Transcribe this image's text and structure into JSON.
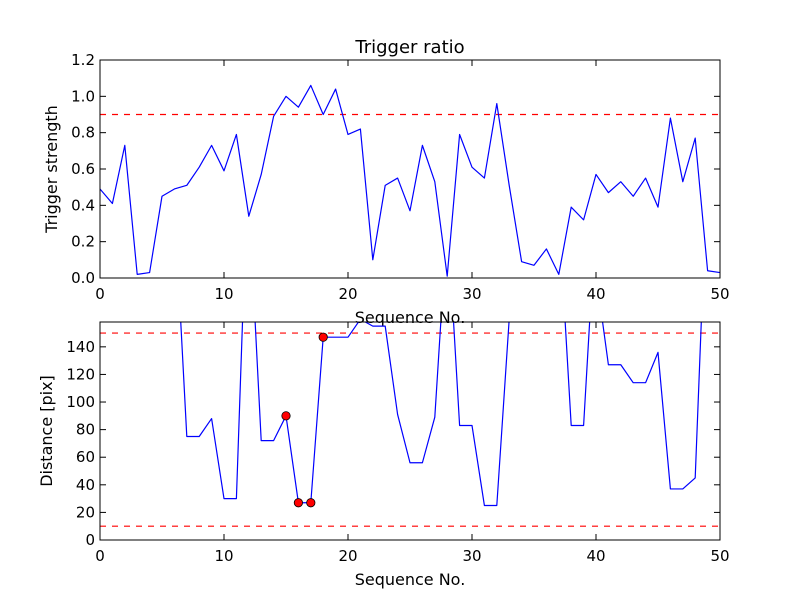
{
  "chart_data": [
    {
      "type": "line",
      "title": "Trigger ratio",
      "xlabel": "Sequence No.",
      "ylabel": "Trigger strength",
      "xlim": [
        0,
        50
      ],
      "ylim": [
        0,
        1.2
      ],
      "xticks": [
        "0",
        "10",
        "20",
        "30",
        "40",
        "50"
      ],
      "yticks": [
        "0.0",
        "0.2",
        "0.4",
        "0.6",
        "0.8",
        "1.0",
        "1.2"
      ],
      "grid": false,
      "series": [
        {
          "color": "#0000ff",
          "x": [
            0,
            1,
            2,
            3,
            4,
            5,
            6,
            7,
            8,
            9,
            10,
            11,
            12,
            13,
            14,
            15,
            16,
            17,
            18,
            19,
            20,
            21,
            22,
            23,
            24,
            25,
            26,
            27,
            28,
            29,
            30,
            31,
            32,
            33,
            34,
            35,
            36,
            37,
            38,
            39,
            40,
            41,
            42,
            43,
            44,
            45,
            46,
            47,
            48,
            49,
            50
          ],
          "y": [
            0.49,
            0.41,
            0.73,
            0.02,
            0.03,
            0.45,
            0.49,
            0.51,
            0.61,
            0.73,
            0.59,
            0.79,
            0.34,
            0.57,
            0.89,
            1.0,
            0.94,
            1.06,
            0.9,
            1.04,
            0.79,
            0.82,
            0.1,
            0.51,
            0.55,
            0.37,
            0.73,
            0.53,
            0.01,
            0.79,
            0.61,
            0.55,
            0.96,
            0.51,
            0.09,
            0.07,
            0.16,
            0.02,
            0.39,
            0.32,
            0.57,
            0.47,
            0.53,
            0.45,
            0.55,
            0.39,
            0.88,
            0.53,
            0.77,
            0.04,
            0.03
          ]
        }
      ],
      "thresholds": [
        {
          "y": 0.9,
          "color": "#ff0000",
          "style": "dashed"
        }
      ]
    },
    {
      "type": "line",
      "title": "",
      "xlabel": "Sequence No.",
      "ylabel": "Distance [pix]",
      "xlim": [
        0,
        50
      ],
      "ylim": [
        0,
        158
      ],
      "xticks": [
        "0",
        "10",
        "20",
        "30",
        "40",
        "50"
      ],
      "yticks": [
        "0",
        "20",
        "40",
        "60",
        "80",
        "100",
        "120",
        "140"
      ],
      "grid": false,
      "series": [
        {
          "color": "#0000ff",
          "points": [
            [
              6.5,
              160
            ],
            [
              7,
              75
            ],
            [
              8,
              75
            ],
            [
              9,
              88
            ],
            [
              10,
              30
            ],
            [
              11,
              30
            ],
            [
              11.5,
              160
            ],
            [
              12.5,
              160
            ],
            [
              13,
              72
            ],
            [
              14,
              72
            ],
            [
              15,
              90
            ],
            [
              16,
              27
            ],
            [
              17,
              27
            ],
            [
              18,
              147
            ],
            [
              19,
              147
            ],
            [
              20,
              147
            ],
            [
              21,
              160
            ],
            [
              22,
              155
            ],
            [
              23,
              155
            ],
            [
              24,
              91
            ],
            [
              25,
              56
            ],
            [
              26,
              56
            ],
            [
              27,
              89
            ],
            [
              27.5,
              160
            ],
            [
              28.5,
              160
            ],
            [
              29,
              83
            ],
            [
              30,
              83
            ],
            [
              31,
              25
            ],
            [
              32,
              25
            ],
            [
              33,
              160
            ],
            [
              37.5,
              160
            ],
            [
              38,
              83
            ],
            [
              39,
              83
            ],
            [
              39.5,
              160
            ],
            [
              40.5,
              160
            ],
            [
              41,
              127
            ],
            [
              42,
              127
            ],
            [
              43,
              114
            ],
            [
              44,
              114
            ],
            [
              45,
              136
            ],
            [
              46,
              37
            ],
            [
              47,
              37
            ],
            [
              48,
              45
            ],
            [
              48.5,
              160
            ]
          ]
        }
      ],
      "markers": [
        {
          "x": 15,
          "y": 90,
          "color": "#ff0000"
        },
        {
          "x": 16,
          "y": 27,
          "color": "#ff0000"
        },
        {
          "x": 17,
          "y": 27,
          "color": "#ff0000"
        },
        {
          "x": 18,
          "y": 147,
          "color": "#ff0000"
        }
      ],
      "thresholds": [
        {
          "y": 150,
          "color": "#ff0000",
          "style": "dashed"
        },
        {
          "y": 10,
          "color": "#ff0000",
          "style": "dashed"
        }
      ]
    }
  ]
}
